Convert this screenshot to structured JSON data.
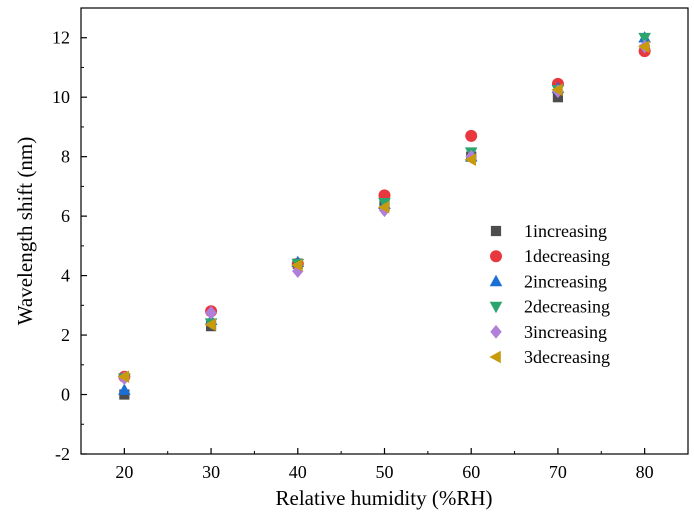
{
  "chart_data": {
    "type": "scatter",
    "xlabel": "Relative humidity (%RH)",
    "ylabel": "Wavelength shift (nm)",
    "xlim": [
      15,
      85
    ],
    "ylim": [
      -2,
      13
    ],
    "xticks": [
      20,
      30,
      40,
      50,
      60,
      70,
      80
    ],
    "yticks": [
      -2,
      0,
      2,
      4,
      6,
      8,
      10,
      12
    ],
    "legend_position": "right",
    "grid": false,
    "x": [
      20,
      30,
      40,
      50,
      60,
      70,
      80
    ],
    "series": [
      {
        "name": "1increasing",
        "marker": "square",
        "color": "#4d4d4d",
        "values": [
          0.0,
          2.3,
          4.4,
          6.4,
          8.0,
          10.0,
          11.6
        ]
      },
      {
        "name": "1decreasing",
        "marker": "circle",
        "color": "#e8383d",
        "values": [
          0.6,
          2.8,
          4.4,
          6.7,
          8.7,
          10.45,
          11.55
        ]
      },
      {
        "name": "2increasing",
        "marker": "triangle-up",
        "color": "#1a6fd6",
        "values": [
          0.15,
          2.5,
          4.45,
          6.4,
          8.0,
          10.3,
          12.0
        ]
      },
      {
        "name": "2decreasing",
        "marker": "triangle-down",
        "color": "#2ca46e",
        "values": [
          0.55,
          2.4,
          4.4,
          6.45,
          8.15,
          10.25,
          12.0
        ]
      },
      {
        "name": "3increasing",
        "marker": "diamond",
        "color": "#b07fd9",
        "values": [
          0.55,
          2.75,
          4.15,
          6.2,
          8.0,
          10.2,
          11.7
        ]
      },
      {
        "name": "3decreasing",
        "marker": "triangle-left",
        "color": "#c89b0c",
        "values": [
          0.6,
          2.35,
          4.35,
          6.3,
          7.9,
          10.25,
          11.7
        ]
      }
    ]
  }
}
